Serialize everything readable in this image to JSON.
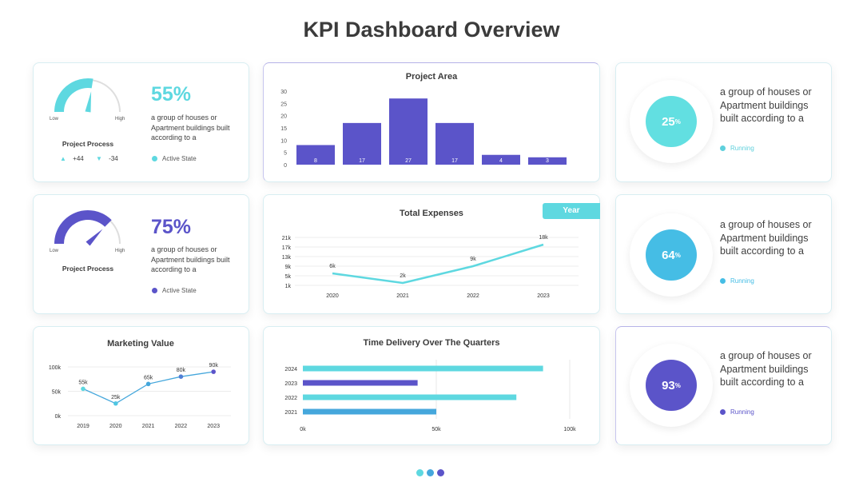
{
  "page_title": "KPI Dashboard Overview",
  "gauge_cards": [
    {
      "percent_label": "55%",
      "fill_fraction": 0.55,
      "color": "#5ed8e0",
      "low": "Low",
      "high": "High",
      "name": "Project Process",
      "description": "a group of houses or Apartment buildings built according to a",
      "up_value": "+44",
      "down_value": "-34",
      "legend": "Active State"
    },
    {
      "percent_label": "75%",
      "fill_fraction": 0.75,
      "color": "#5b54c9",
      "low": "Low",
      "high": "High",
      "name": "Project Process",
      "description": "a group of houses or Apartment buildings built according to a",
      "legend": "Active State"
    }
  ],
  "donut_cards": [
    {
      "value": "25",
      "unit": "%",
      "color": "#62dfe1",
      "description": "a group of houses or Apartment buildings built according to a",
      "status": "Running",
      "status_color": "#5ed0dc"
    },
    {
      "value": "64",
      "unit": "%",
      "color": "#45bde5",
      "description": "a group of houses or Apartment buildings built according to a",
      "status": "Running",
      "status_color": "#45bde5"
    },
    {
      "value": "93",
      "unit": "%",
      "color": "#5b54c9",
      "description": "a group of houses or Apartment buildings built according to a",
      "status": "Running",
      "status_color": "#5b54c9"
    }
  ],
  "year_button": "Year",
  "colors": {
    "teal": "#5ed8e0",
    "blue": "#45a7dc",
    "purple": "#5b54c9"
  },
  "chart_data": [
    {
      "type": "bar",
      "title": "Project Area",
      "categories": [
        "",
        "",
        "",
        "",
        "",
        ""
      ],
      "values": [
        8,
        17,
        27,
        17,
        4,
        3
      ],
      "data_labels": [
        "8",
        "17",
        "27",
        "17",
        "4",
        "3"
      ],
      "y_ticks": [
        "0",
        "5",
        "10",
        "15",
        "20",
        "25",
        "30"
      ],
      "ylim": [
        0,
        30
      ],
      "grid": false
    },
    {
      "type": "line",
      "title": "Total Expenses",
      "x": [
        "2020",
        "2021",
        "2022",
        "2023"
      ],
      "values": [
        6,
        2,
        9,
        18
      ],
      "data_labels": [
        "6k",
        "2k",
        "9k",
        "18k"
      ],
      "y_ticks": [
        "1k",
        "5k",
        "9k",
        "13k",
        "17k",
        "21k"
      ],
      "ylim": [
        1,
        21
      ],
      "grid": true
    },
    {
      "type": "line",
      "title": "Marketing Value",
      "x": [
        "2019",
        "2020",
        "2021",
        "2022",
        "2023"
      ],
      "values": [
        55,
        25,
        65,
        80,
        90
      ],
      "data_labels": [
        "55k",
        "25k",
        "65k",
        "80k",
        "90k"
      ],
      "y_ticks": [
        "0k",
        "50k",
        "100k"
      ],
      "ylim": [
        0,
        100
      ],
      "grid": true
    },
    {
      "type": "bar",
      "orientation": "horizontal",
      "title": "Time Delivery Over The Quarters",
      "categories": [
        "2024",
        "2023",
        "2022",
        "2021"
      ],
      "values": [
        90,
        43,
        80,
        50
      ],
      "x_ticks": [
        "0k",
        "50k",
        "100k"
      ],
      "xlim": [
        0,
        100
      ],
      "grid": true
    }
  ],
  "pagination_dots": [
    "#5ed8e0",
    "#45a7dc",
    "#5b54c9"
  ]
}
